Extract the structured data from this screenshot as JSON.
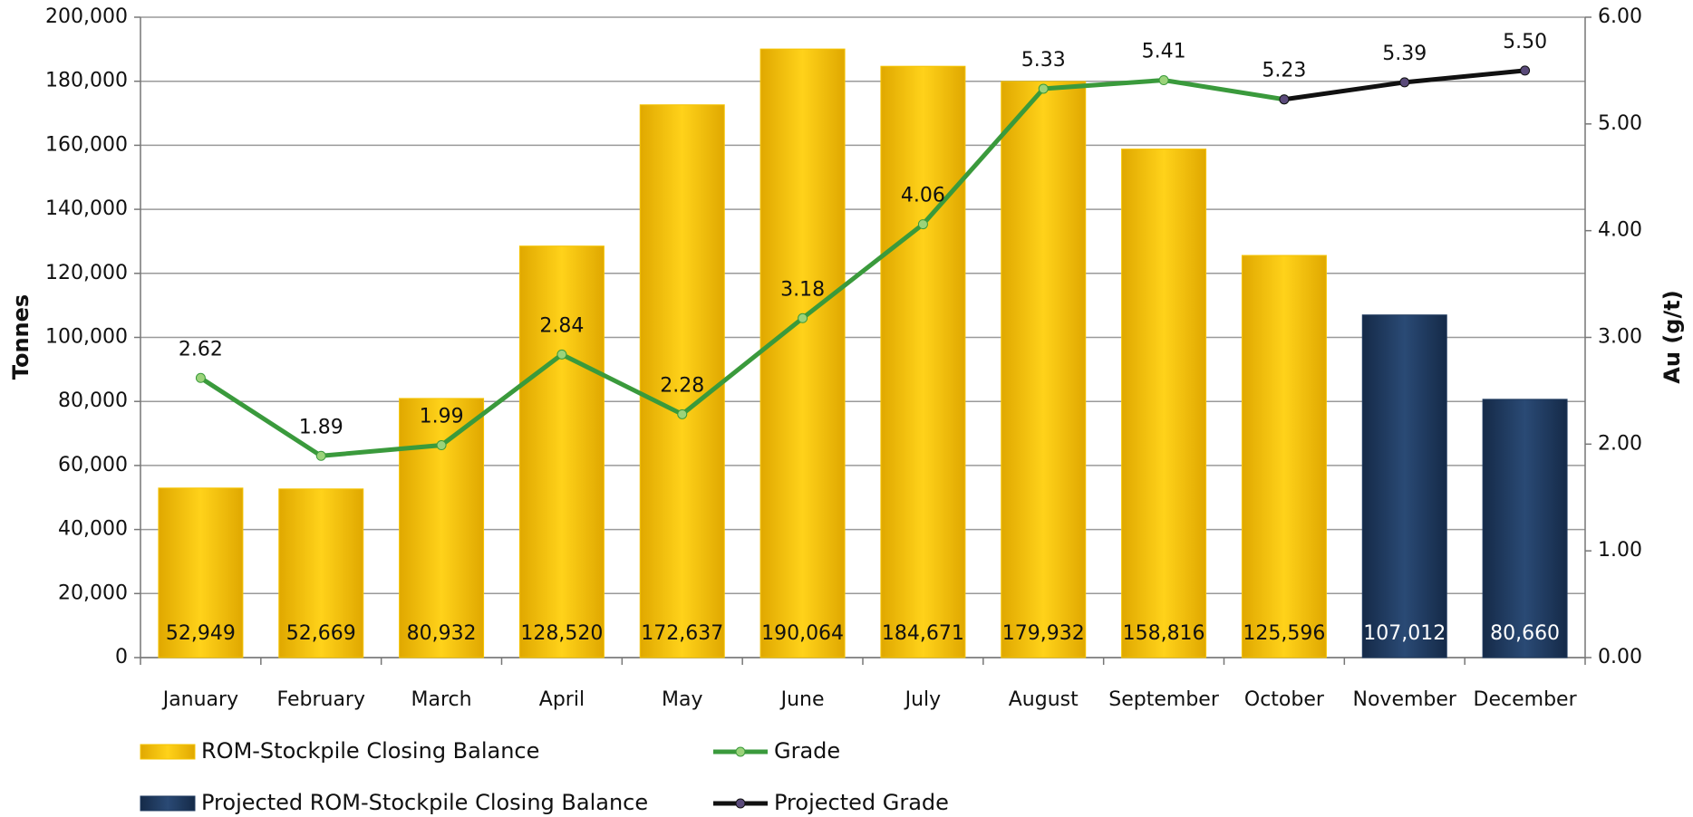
{
  "chart_data": {
    "type": "bar",
    "categories": [
      "January",
      "February",
      "March",
      "April",
      "May",
      "June",
      "July",
      "August",
      "September",
      "October",
      "November",
      "December"
    ],
    "series": [
      {
        "name": "ROM-Stockpile Closing Balance",
        "color": "#f5c400",
        "type": "bar",
        "values": [
          52949,
          52669,
          80932,
          128520,
          172637,
          190064,
          184671,
          179932,
          158816,
          125596,
          null,
          null
        ],
        "value_labels": [
          "52,949",
          "52,669",
          "80,932",
          "128,520",
          "172,637",
          "190,064",
          "184,671",
          "179,932",
          "158,816",
          "125,596",
          null,
          null
        ]
      },
      {
        "name": "Projected ROM-Stockpile Closing Balance",
        "color": "#1f3a5f",
        "type": "bar",
        "values": [
          null,
          null,
          null,
          null,
          null,
          null,
          null,
          null,
          null,
          null,
          107012,
          80660
        ],
        "value_labels": [
          null,
          null,
          null,
          null,
          null,
          null,
          null,
          null,
          null,
          null,
          "107,012",
          "80,660"
        ]
      },
      {
        "name": "Grade",
        "color": "#3a9a3c",
        "type": "line",
        "axis": "y2",
        "values": [
          2.62,
          1.89,
          1.99,
          2.84,
          2.28,
          3.18,
          4.06,
          5.33,
          5.41,
          5.23,
          null,
          null
        ]
      },
      {
        "name": "Projected Grade",
        "color": "#111111",
        "type": "line",
        "axis": "y2",
        "values": [
          null,
          null,
          null,
          null,
          null,
          null,
          null,
          null,
          null,
          5.23,
          5.39,
          5.5
        ],
        "value_labels": [
          null,
          null,
          null,
          null,
          null,
          null,
          null,
          null,
          null,
          null,
          "5.39",
          "5.50"
        ]
      }
    ],
    "y_label": "Tonnes",
    "y2_label": "Au (g/t)",
    "ylim": [
      0,
      200000
    ],
    "yticks": [
      0,
      {
        "value": 20000,
        "label": "20,000"
      },
      {
        "value": 40000,
        "label": "40,000"
      },
      {
        "value": 60000,
        "label": "60,000"
      },
      {
        "value": 80000,
        "label": "80,000"
      },
      {
        "value": 100000,
        "label": "100,000"
      },
      {
        "value": 120000,
        "label": "120,000"
      },
      {
        "value": 140000,
        "label": "140,000"
      },
      {
        "value": 160000,
        "label": "160,000"
      },
      {
        "value": 180000,
        "label": "180,000"
      },
      {
        "value": 200000,
        "label": "200,000"
      }
    ],
    "y2lim": [
      0,
      6
    ],
    "y2ticks": [
      {
        "value": 0,
        "label": "0.00"
      },
      {
        "value": 1,
        "label": "1.00"
      },
      {
        "value": 2,
        "label": "2.00"
      },
      {
        "value": 3,
        "label": "3.00"
      },
      {
        "value": 4,
        "label": "4.00"
      },
      {
        "value": 5,
        "label": "5.00"
      },
      {
        "value": 6,
        "label": "6.00"
      }
    ],
    "grid": true,
    "legend": "bottom"
  }
}
